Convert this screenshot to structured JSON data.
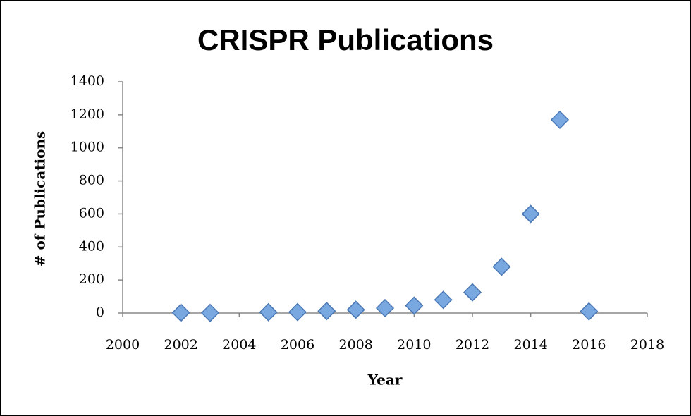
{
  "chart_data": {
    "type": "scatter",
    "title": "CRISPR Publications",
    "x_label": "Year",
    "y_label": "# of Publications",
    "x": [
      2002,
      2003,
      2005,
      2006,
      2007,
      2008,
      2009,
      2010,
      2011,
      2012,
      2013,
      2014,
      2015,
      2016
    ],
    "values": [
      2,
      1,
      5,
      6,
      12,
      20,
      30,
      45,
      80,
      125,
      280,
      600,
      1170,
      10
    ],
    "color": "#79a7e0",
    "xlim": [
      2000,
      2018
    ],
    "xticks": [
      2000,
      2002,
      2004,
      2006,
      2008,
      2010,
      2012,
      2014,
      2016,
      2018
    ],
    "ylim": [
      0,
      1400
    ],
    "yticks": [
      0,
      200,
      400,
      600,
      800,
      1000,
      1200,
      1400
    ],
    "grid": false
  }
}
